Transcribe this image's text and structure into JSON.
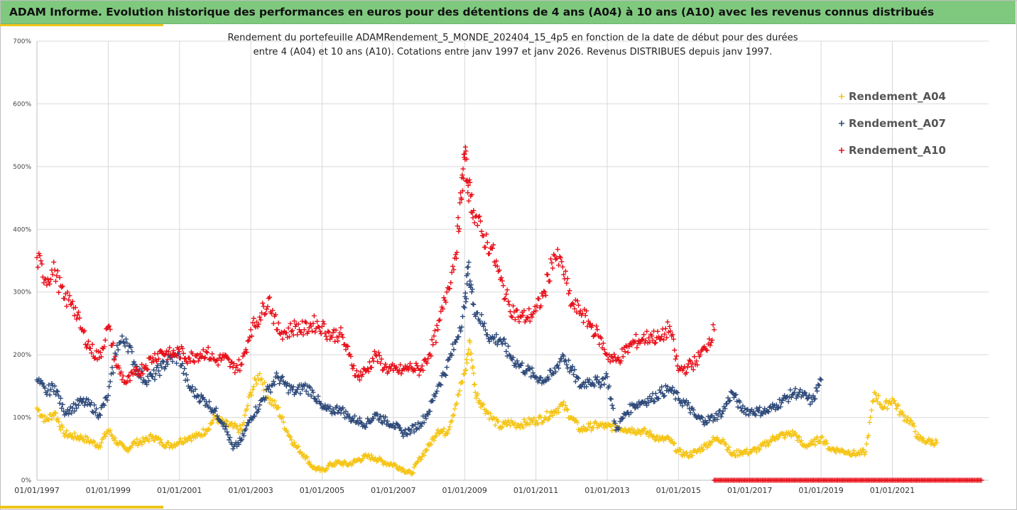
{
  "header": {
    "title": "ADAM Informe. Evolution historique des performances en euros pour des détentions de 4 ans (A04) à 10 ans (A10) avec les revenus connus distribués"
  },
  "colors": {
    "A04": "#f5c518",
    "A07": "#2e4a7a",
    "A10": "#e8101a",
    "grid": "#d9d9d9",
    "banner": "#7fc97f"
  },
  "chart_data": {
    "type": "scatter",
    "title_line1": "Rendement du portefeuille ADAMRendement_5_MONDE_202404_15_4p5 en fonction de la date de début pour des durées",
    "title_line2": "entre 4 (A04) et 10 ans (A10). Cotations entre janv 1997 et janv 2026. Revenus DISTRIBUES depuis janv 1997.",
    "xlabel": "",
    "ylabel": "",
    "ylim": [
      0,
      700
    ],
    "xlim": [
      1997.0,
      2023.7
    ],
    "y_ticks": [
      "0%",
      "100%",
      "200%",
      "300%",
      "400%",
      "500%",
      "600%",
      "700%"
    ],
    "x_ticks": [
      "01/01/1997",
      "01/01/1999",
      "01/01/2001",
      "01/01/2003",
      "01/01/2005",
      "01/01/2007",
      "01/01/2009",
      "01/01/2011",
      "01/01/2013",
      "01/01/2015",
      "01/01/2017",
      "01/01/2019",
      "01/01/2021"
    ],
    "legend_position": "top-right",
    "grid": true,
    "series": [
      {
        "name": "Rendement_A04",
        "key": "A04",
        "x": [
          1997.0,
          1997.25,
          1997.5,
          1997.75,
          1998.0,
          1998.25,
          1998.5,
          1998.75,
          1999.0,
          1999.25,
          1999.5,
          1999.75,
          2000.0,
          2000.25,
          2000.5,
          2000.75,
          2001.0,
          2001.25,
          2001.5,
          2001.75,
          2002.0,
          2002.25,
          2002.5,
          2002.75,
          2003.0,
          2003.25,
          2003.5,
          2003.75,
          2004.0,
          2004.25,
          2004.5,
          2004.75,
          2005.0,
          2005.25,
          2005.5,
          2005.75,
          2006.0,
          2006.25,
          2006.5,
          2006.75,
          2007.0,
          2007.25,
          2007.5,
          2007.75,
          2008.0,
          2008.25,
          2008.5,
          2008.75,
          2009.0,
          2009.15,
          2009.3,
          2009.5,
          2009.75,
          2010.0,
          2010.25,
          2010.5,
          2010.75,
          2011.0,
          2011.25,
          2011.5,
          2011.75,
          2012.0,
          2012.25,
          2012.5,
          2012.75,
          2013.0,
          2013.25,
          2013.5,
          2013.75,
          2014.0,
          2014.25,
          2014.5,
          2014.75,
          2015.0,
          2015.25,
          2015.5,
          2015.75,
          2016.0,
          2016.25,
          2016.5,
          2016.75,
          2017.0,
          2017.25,
          2017.5,
          2017.75,
          2018.0,
          2018.25,
          2018.5,
          2018.75,
          2019.0,
          2019.25,
          2019.5,
          2019.75,
          2020.0,
          2020.25,
          2020.5,
          2020.75,
          2021.0,
          2021.25,
          2021.5,
          2021.75,
          2022.0,
          2022.25
        ],
        "values": [
          115,
          95,
          108,
          75,
          70,
          68,
          62,
          55,
          80,
          60,
          48,
          60,
          62,
          70,
          60,
          55,
          62,
          68,
          70,
          80,
          100,
          90,
          85,
          80,
          140,
          170,
          130,
          115,
          80,
          55,
          40,
          20,
          15,
          25,
          28,
          25,
          32,
          38,
          35,
          28,
          25,
          18,
          10,
          35,
          55,
          80,
          75,
          120,
          170,
          220,
          140,
          120,
          100,
          85,
          92,
          88,
          92,
          95,
          100,
          110,
          120,
          100,
          80,
          85,
          88,
          85,
          85,
          82,
          80,
          78,
          72,
          65,
          65,
          45,
          40,
          45,
          55,
          65,
          65,
          40,
          45,
          45,
          50,
          60,
          70,
          72,
          75,
          55,
          58,
          68,
          50,
          48,
          45,
          42,
          45,
          140,
          115,
          130,
          105,
          95,
          65,
          62,
          60
        ]
      },
      {
        "name": "Rendement_A07",
        "key": "A07",
        "x": [
          1997.0,
          1997.25,
          1997.5,
          1997.75,
          1998.0,
          1998.25,
          1998.5,
          1998.75,
          1999.0,
          1999.25,
          1999.5,
          1999.75,
          2000.0,
          2000.25,
          2000.5,
          2000.75,
          2001.0,
          2001.25,
          2001.5,
          2001.75,
          2002.0,
          2002.25,
          2002.5,
          2002.75,
          2003.0,
          2003.25,
          2003.5,
          2003.75,
          2004.0,
          2004.25,
          2004.5,
          2004.75,
          2005.0,
          2005.25,
          2005.5,
          2005.75,
          2006.0,
          2006.25,
          2006.5,
          2006.75,
          2007.0,
          2007.25,
          2007.5,
          2007.75,
          2008.0,
          2008.25,
          2008.5,
          2008.75,
          2009.0,
          2009.1,
          2009.25,
          2009.5,
          2009.75,
          2010.0,
          2010.25,
          2010.5,
          2010.75,
          2011.0,
          2011.25,
          2011.5,
          2011.75,
          2012.0,
          2012.25,
          2012.5,
          2012.75,
          2013.0,
          2013.25,
          2013.5,
          2013.75,
          2014.0,
          2014.25,
          2014.5,
          2014.75,
          2015.0,
          2015.25,
          2015.5,
          2015.75,
          2016.0,
          2016.25,
          2016.5,
          2016.75,
          2017.0,
          2017.25,
          2017.5,
          2017.75,
          2018.0,
          2018.25,
          2018.5,
          2018.75,
          2019.0
        ],
        "values": [
          160,
          140,
          150,
          110,
          115,
          125,
          120,
          105,
          135,
          215,
          225,
          185,
          160,
          165,
          180,
          195,
          195,
          150,
          135,
          125,
          110,
          90,
          50,
          65,
          100,
          120,
          145,
          165,
          150,
          140,
          150,
          140,
          115,
          110,
          115,
          100,
          95,
          90,
          105,
          95,
          90,
          75,
          80,
          90,
          110,
          150,
          180,
          220,
          275,
          340,
          280,
          250,
          225,
          225,
          200,
          185,
          175,
          165,
          160,
          170,
          200,
          175,
          150,
          160,
          155,
          165,
          80,
          105,
          120,
          125,
          130,
          140,
          145,
          130,
          120,
          100,
          95,
          100,
          110,
          140,
          115,
          110,
          110,
          110,
          120,
          130,
          140,
          135,
          125,
          160
        ]
      },
      {
        "name": "Rendement_A10",
        "key": "A10",
        "x": [
          1997.0,
          1997.25,
          1997.5,
          1997.75,
          1998.0,
          1998.25,
          1998.5,
          1998.75,
          1999.0,
          1999.25,
          1999.5,
          1999.75,
          2000.0,
          2000.25,
          2000.5,
          2000.75,
          2001.0,
          2001.25,
          2001.5,
          2001.75,
          2002.0,
          2002.25,
          2002.5,
          2002.75,
          2003.0,
          2003.25,
          2003.5,
          2003.75,
          2004.0,
          2004.25,
          2004.5,
          2004.75,
          2005.0,
          2005.25,
          2005.5,
          2005.75,
          2006.0,
          2006.25,
          2006.5,
          2006.75,
          2007.0,
          2007.25,
          2007.5,
          2007.75,
          2008.0,
          2008.25,
          2008.5,
          2008.75,
          2008.9,
          2009.0,
          2009.1,
          2009.25,
          2009.5,
          2009.75,
          2010.0,
          2010.25,
          2010.5,
          2010.75,
          2011.0,
          2011.25,
          2011.5,
          2011.75,
          2012.0,
          2012.25,
          2012.5,
          2012.75,
          2013.0,
          2013.25,
          2013.5,
          2013.75,
          2014.0,
          2014.25,
          2014.5,
          2014.75,
          2015.0,
          2015.25,
          2015.5,
          2015.75,
          2016.0
        ],
        "values": [
          355,
          320,
          335,
          290,
          285,
          240,
          210,
          195,
          245,
          180,
          155,
          170,
          180,
          195,
          205,
          200,
          205,
          195,
          200,
          205,
          190,
          195,
          180,
          185,
          240,
          260,
          290,
          240,
          235,
          245,
          240,
          250,
          245,
          230,
          235,
          200,
          165,
          175,
          200,
          180,
          175,
          175,
          180,
          175,
          200,
          240,
          300,
          360,
          450,
          520,
          470,
          430,
          390,
          370,
          320,
          280,
          260,
          260,
          270,
          300,
          360,
          340,
          280,
          270,
          250,
          230,
          200,
          190,
          205,
          220,
          225,
          230,
          225,
          245,
          175,
          180,
          190,
          210,
          240
        ]
      },
      {
        "name": "",
        "key": "A10",
        "x": [
          2016.0,
          2016.5,
          2017.0,
          2017.5,
          2018.0,
          2018.5,
          2019.0,
          2019.5,
          2020.0,
          2020.5,
          2021.0,
          2021.5,
          2022.0,
          2022.5,
          2023.0,
          2023.5
        ],
        "values": [
          0,
          0,
          0,
          0,
          0,
          0,
          0,
          0,
          0,
          0,
          0,
          0,
          0,
          0,
          0,
          0
        ],
        "baseline": true
      }
    ]
  }
}
